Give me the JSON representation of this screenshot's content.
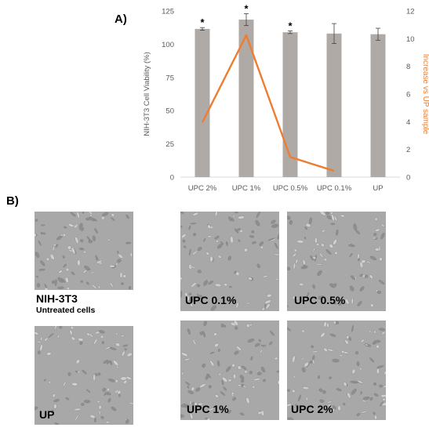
{
  "panels": {
    "a_label": "A)",
    "b_label": "B)"
  },
  "chart_data": {
    "type": "bar",
    "categories": [
      "UPC 2%",
      "UPC 1%",
      "UPC 0.5%",
      "UPC 0.1%",
      "UP"
    ],
    "series": [
      {
        "name": "",
        "type": "bar",
        "axis": "left",
        "values": [
          111.5,
          118.5,
          109,
          108,
          107.5
        ],
        "errors": [
          1,
          4.5,
          1,
          7.5,
          4.5
        ],
        "color": "#b0aaa6"
      },
      {
        "name": "",
        "type": "line",
        "axis": "right",
        "values": [
          3.95,
          10.25,
          1.45,
          0.45,
          null
        ],
        "color": "#ed7d31"
      }
    ],
    "significance": [
      "*",
      "*",
      "*",
      "",
      ""
    ],
    "ylabel": "NIH-3T3 Cell Viability (%)",
    "y2label": "Increase vs UP sample",
    "ylim": [
      0,
      125
    ],
    "yticks": [
      0,
      25,
      50,
      75,
      100,
      125
    ],
    "y2lim": [
      0,
      12
    ],
    "y2ticks": [
      0,
      2,
      4,
      6,
      8,
      10,
      12
    ],
    "grid": false,
    "legend": "none"
  },
  "images": {
    "nih": {
      "title": "NIH-3T3",
      "subtitle": "Untreated cells"
    },
    "up": {
      "label": "UP"
    },
    "upc01": {
      "label": "UPC 0.1%"
    },
    "upc05": {
      "label": "UPC 0.5%"
    },
    "upc1": {
      "label": "UPC 1%"
    },
    "upc2": {
      "label": "UPC 2%"
    }
  },
  "colors": {
    "bar": "#b0aaa6",
    "line": "#ed7d31",
    "axis_text": "#595959",
    "tile": "#a9a9a9"
  }
}
